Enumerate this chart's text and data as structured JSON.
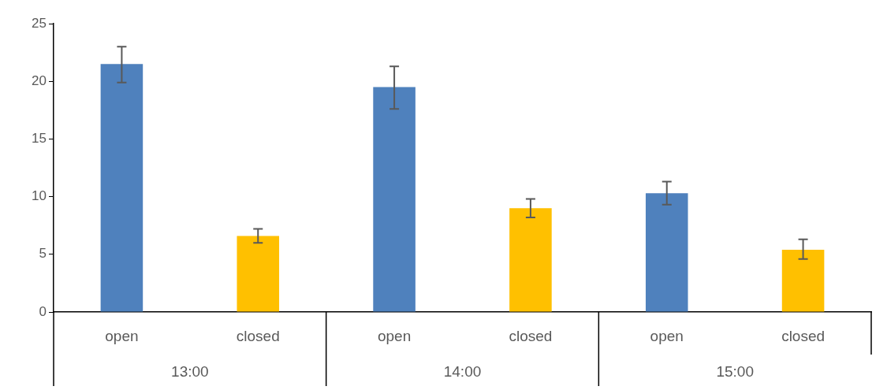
{
  "chart_data": {
    "type": "bar",
    "categories": [
      "13:00",
      "14:00",
      "15:00"
    ],
    "series": [
      {
        "name": "open",
        "color": "#4f81bd",
        "values": [
          21.5,
          19.5,
          10.3
        ],
        "errors": [
          [
            19.9,
            23.0
          ],
          [
            17.6,
            21.3
          ],
          [
            9.3,
            11.3
          ]
        ]
      },
      {
        "name": "closed",
        "color": "#ffc000",
        "values": [
          6.6,
          9.0,
          5.4
        ],
        "errors": [
          [
            6.0,
            7.2
          ],
          [
            8.2,
            9.8
          ],
          [
            4.6,
            6.3
          ]
        ]
      }
    ],
    "ylim": [
      0,
      25
    ],
    "yticks": [
      0,
      5,
      10,
      15,
      20,
      25
    ],
    "grid": false,
    "legend": false
  }
}
